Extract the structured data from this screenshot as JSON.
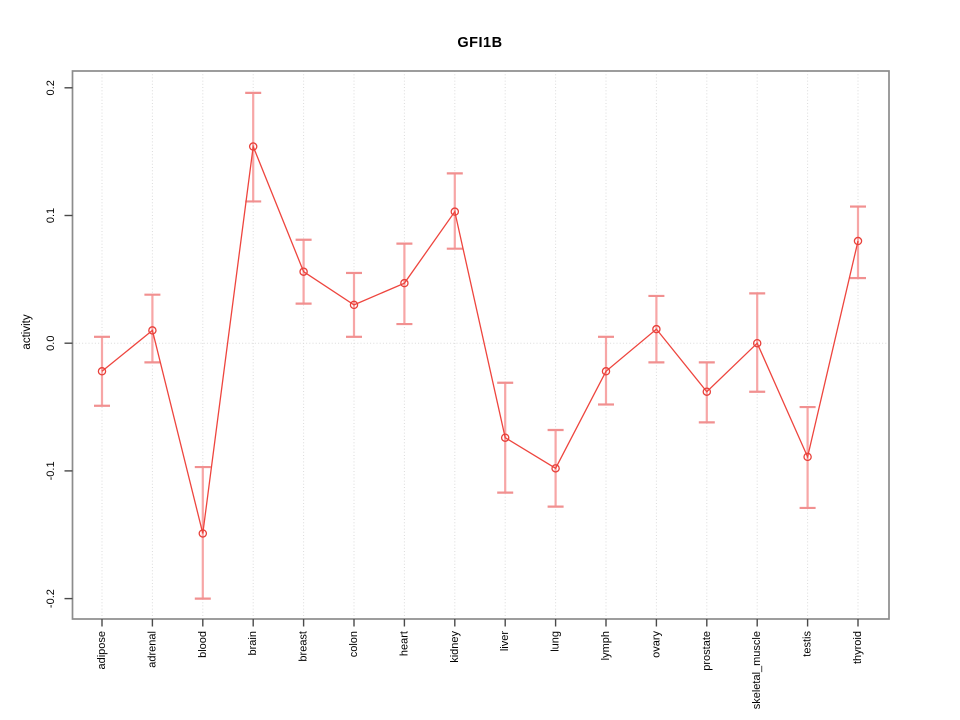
{
  "chart_data": {
    "type": "line",
    "title": "GFI1B",
    "xlabel": "",
    "ylabel": "activity",
    "categories": [
      "adipose",
      "adrenal",
      "blood",
      "brain",
      "breast",
      "colon",
      "heart",
      "kidney",
      "liver",
      "lung",
      "lymph",
      "ovary",
      "prostate",
      "skeletal_muscle",
      "testis",
      "thyroid"
    ],
    "series": [
      {
        "name": "activity",
        "values": [
          -0.022,
          0.01,
          -0.149,
          0.154,
          0.056,
          0.03,
          0.047,
          0.103,
          -0.074,
          -0.098,
          -0.022,
          0.011,
          -0.038,
          0.0,
          -0.089,
          0.08
        ],
        "error_low": [
          -0.049,
          -0.015,
          -0.2,
          0.111,
          0.031,
          0.005,
          0.015,
          0.074,
          -0.117,
          -0.128,
          -0.048,
          -0.015,
          -0.062,
          -0.038,
          -0.129,
          0.051
        ],
        "error_high": [
          0.005,
          0.038,
          -0.097,
          0.196,
          0.081,
          0.055,
          0.078,
          0.133,
          -0.031,
          -0.068,
          0.005,
          0.037,
          -0.015,
          0.039,
          -0.05,
          0.107
        ]
      }
    ],
    "ytick_labels": [
      "-0.2",
      "-0.1",
      "0.0",
      "0.1",
      "0.2"
    ],
    "yticks": [
      -0.2,
      -0.1,
      0.0,
      0.1,
      0.2
    ],
    "ylim": [
      -0.216,
      0.213
    ],
    "grid": "dotted vertical line at each category; dotted horizontal line at y=0",
    "legend": "none",
    "marker": "open-circle",
    "colors": {
      "line": "#ee453e",
      "marker": "#e8403a",
      "error_bar": "#f7a6a6",
      "error_cap": "#f19090",
      "gridline": "#dbdbdb",
      "box_border": "#8c8c8c",
      "tick": "#4a4a4a",
      "text": "#000000",
      "background": "#ffffff"
    }
  }
}
